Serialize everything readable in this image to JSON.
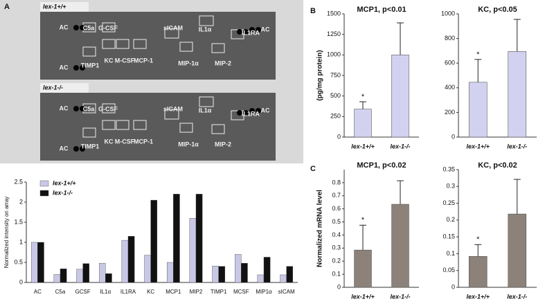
{
  "panel_letters": [
    "A",
    "B",
    "C"
  ],
  "arrays": [
    {
      "genotype": "lex-1+/+",
      "labels": [
        "AC",
        "C5a",
        "G-CSF",
        "sICAM",
        "IL1α",
        "IL1RA",
        "AC",
        "KC",
        "M-CSF",
        "MCP-1",
        "MIP-1α",
        "MIP-2",
        "AC",
        "TIMP1"
      ]
    },
    {
      "genotype": "lex-1-/-",
      "labels": [
        "AC",
        "C5a",
        "G-CSF",
        "sICAM",
        "IL1α",
        "IL1RA",
        "AC",
        "KC",
        "M-CSF",
        "MCP-1",
        "MIP-1α",
        "MIP-2",
        "AC",
        "TIMP1"
      ]
    }
  ],
  "chart_data": [
    {
      "type": "grouped_bar",
      "ylabel": "Normalized intensity on array",
      "categories": [
        "AC",
        "C5a",
        "GCSF",
        "IL1α",
        "IL1RA",
        "KC",
        "MCP1",
        "MIP2",
        "TIMP1",
        "MCSF",
        "MIP1α",
        "sICAM"
      ],
      "series": [
        {
          "name": "lex-1+/+",
          "color": "#c8c8e6",
          "values": [
            1.0,
            0.2,
            0.33,
            0.48,
            1.05,
            0.68,
            0.5,
            1.6,
            0.41,
            0.7,
            0.19,
            0.19
          ]
        },
        {
          "name": "lex-1-/-",
          "color": "#111111",
          "values": [
            1.0,
            0.34,
            0.47,
            0.22,
            1.15,
            2.05,
            2.2,
            2.2,
            0.4,
            0.48,
            0.63,
            0.4
          ]
        }
      ],
      "ylim": [
        0,
        2.5
      ],
      "yticks": [
        0,
        0.5,
        1,
        1.5,
        2,
        2.5
      ],
      "legend": "top-left"
    },
    {
      "type": "bar_error",
      "title": "MCP1, p<0.01",
      "ylabel": "(pg/mg protein)",
      "annotation": "*",
      "categories": [
        "lex-1+/+",
        "lex-1-/-"
      ],
      "values": [
        340,
        1000
      ],
      "errors": [
        90,
        390
      ],
      "color": "#d2d2f0",
      "ylim": [
        0,
        1500
      ],
      "yticks": [
        0,
        250,
        500,
        750,
        1000,
        1250,
        1500
      ]
    },
    {
      "type": "bar_error",
      "title": "KC, p<0.05",
      "annotation": "*",
      "categories": [
        "lex-1+/+",
        "lex-1-/-"
      ],
      "values": [
        445,
        695
      ],
      "errors": [
        185,
        260
      ],
      "color": "#d2d2f0",
      "ylim": [
        0,
        1000
      ],
      "yticks": [
        0,
        200,
        400,
        600,
        800,
        1000
      ]
    },
    {
      "type": "bar_error",
      "title": "MCP1, p<0.02",
      "ylabel": "Normalized mRNA level",
      "annotation": "*",
      "categories": [
        "lex-1+/+",
        "lex-1-/-"
      ],
      "values": [
        0.285,
        0.635
      ],
      "errors": [
        0.19,
        0.18
      ],
      "color": "#8c8279",
      "ylim": [
        0,
        0.9
      ],
      "yticks": [
        0,
        0.1,
        0.2,
        0.3,
        0.4,
        0.5,
        0.6,
        0.7,
        0.8
      ]
    },
    {
      "type": "bar_error",
      "title": "KC, p<0.02",
      "annotation": "*",
      "categories": [
        "lex-1+/+",
        "lex-1-/-"
      ],
      "values": [
        0.092,
        0.218
      ],
      "errors": [
        0.035,
        0.103
      ],
      "color": "#8c8279",
      "ylim": [
        0,
        0.35
      ],
      "yticks": [
        0,
        0.05,
        0.1,
        0.15,
        0.2,
        0.25,
        0.3,
        0.35
      ]
    }
  ]
}
